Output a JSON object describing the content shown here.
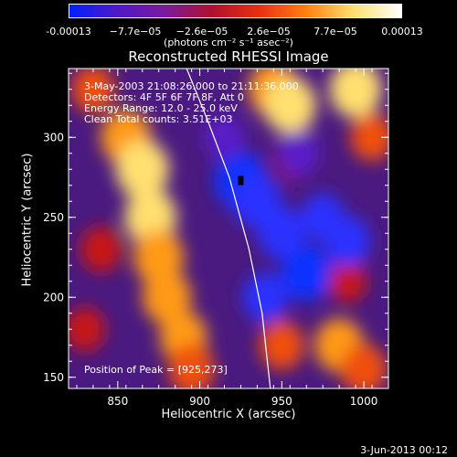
{
  "colorbar": {
    "ticks": [
      "-0.00013",
      "−7.7e−05",
      "−2.6e−05",
      "2.6e−05",
      "7.7e−05",
      "0.00013"
    ],
    "units": "(photons cm⁻² s⁻¹ asec⁻²)",
    "colors": [
      "#0020ff",
      "#5018c8",
      "#7a1aa0",
      "#b01030",
      "#e83010",
      "#ff8010",
      "#ffe070",
      "#ffffff"
    ]
  },
  "annotations": {
    "time": "3-May-2003 21:08:26.000 to 21:11:36.000",
    "detectors": "Detectors: 4F 5F 6F 7F 8F, Att 0",
    "energy": "Energy Range: 12.0 - 25.0 keV",
    "clean": "Clean    Total counts: 3.51E+03",
    "peak": "Position of Peak = [925,273]"
  },
  "footer": "3-Jun-2013 00:12",
  "chart_data": {
    "type": "heatmap",
    "title": "Reconstructed RHESSI Image",
    "xlabel": "Heliocentric X (arcsec)",
    "ylabel": "Heliocentric Y (arcsec)",
    "xlim": [
      820,
      1015
    ],
    "ylim": [
      143,
      343
    ],
    "xticks": [
      850,
      900,
      950,
      1000
    ],
    "yticks": [
      150,
      200,
      250,
      300
    ],
    "colorbar_range": [
      -0.00013,
      0.00013
    ],
    "peak_position": [
      925,
      273
    ],
    "limb_curve": {
      "x": [
        892,
        905,
        918,
        930,
        938,
        943
      ],
      "y": [
        343,
        310,
        275,
        230,
        190,
        143
      ]
    },
    "cells": [
      {
        "x": 855,
        "y": 300,
        "v": 0.85
      },
      {
        "x": 865,
        "y": 280,
        "v": 0.95
      },
      {
        "x": 870,
        "y": 250,
        "v": 0.9
      },
      {
        "x": 875,
        "y": 225,
        "v": 0.85
      },
      {
        "x": 880,
        "y": 200,
        "v": 0.8
      },
      {
        "x": 890,
        "y": 175,
        "v": 0.75
      },
      {
        "x": 895,
        "y": 155,
        "v": 0.7
      },
      {
        "x": 835,
        "y": 330,
        "v": 0.6
      },
      {
        "x": 840,
        "y": 230,
        "v": 0.55
      },
      {
        "x": 830,
        "y": 180,
        "v": 0.5
      },
      {
        "x": 945,
        "y": 330,
        "v": 0.85
      },
      {
        "x": 955,
        "y": 320,
        "v": 0.9
      },
      {
        "x": 995,
        "y": 330,
        "v": 0.9
      },
      {
        "x": 1005,
        "y": 300,
        "v": 0.6
      },
      {
        "x": 985,
        "y": 170,
        "v": 0.8
      },
      {
        "x": 1000,
        "y": 155,
        "v": 0.7
      },
      {
        "x": 950,
        "y": 170,
        "v": 0.65
      },
      {
        "x": 955,
        "y": 285,
        "v": 0.4
      },
      {
        "x": 990,
        "y": 210,
        "v": 0.45
      },
      {
        "x": 925,
        "y": 273,
        "v": -0.95
      },
      {
        "x": 935,
        "y": 260,
        "v": -0.8
      },
      {
        "x": 950,
        "y": 240,
        "v": -0.75
      },
      {
        "x": 965,
        "y": 215,
        "v": -0.85
      },
      {
        "x": 990,
        "y": 235,
        "v": -0.7
      },
      {
        "x": 975,
        "y": 250,
        "v": -0.6
      },
      {
        "x": 940,
        "y": 200,
        "v": -0.65
      },
      {
        "x": 960,
        "y": 290,
        "v": -0.55
      },
      {
        "x": 915,
        "y": 300,
        "v": -0.5
      }
    ]
  }
}
